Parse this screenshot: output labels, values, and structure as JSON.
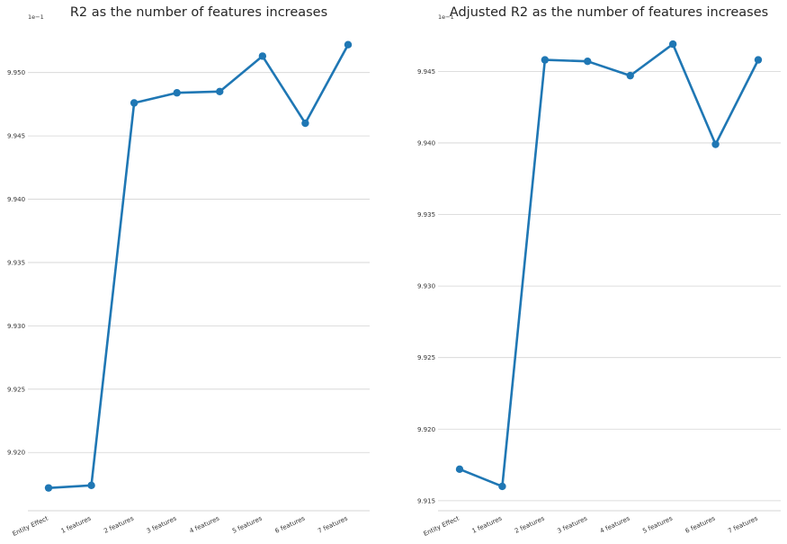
{
  "chart_data": [
    {
      "type": "line",
      "title": "R2 as the number of features increases",
      "offset_label": "1e−1",
      "xlabel": "",
      "ylabel": "",
      "categories": [
        "Entity Effect",
        "1 features",
        "2 features",
        "3 features",
        "4 features",
        "5 features",
        "6 features",
        "7 features"
      ],
      "values": [
        9.9172,
        9.9174,
        9.9476,
        9.9484,
        9.9485,
        9.9513,
        9.946,
        9.9522
      ],
      "yticks": [
        "9.920",
        "9.925",
        "9.930",
        "9.935",
        "9.940",
        "9.945",
        "9.950"
      ],
      "ylim": [
        9.9154,
        9.9536
      ],
      "grid": true,
      "color": "#1f77b4"
    },
    {
      "type": "line",
      "title": "Adjusted R2 as the number of features increases",
      "offset_label": "1e−1",
      "xlabel": "",
      "ylabel": "",
      "categories": [
        "Entity Effect",
        "1 features",
        "2 features",
        "3 features",
        "4 features",
        "5 features",
        "6 features",
        "7 features"
      ],
      "values": [
        9.9172,
        9.916,
        9.9458,
        9.9457,
        9.9447,
        9.9469,
        9.9399,
        9.9458
      ],
      "yticks": [
        "9.915",
        "9.920",
        "9.925",
        "9.930",
        "9.935",
        "9.940",
        "9.945"
      ],
      "ylim": [
        9.9143,
        9.9481
      ],
      "grid": true,
      "color": "#1f77b4"
    }
  ]
}
